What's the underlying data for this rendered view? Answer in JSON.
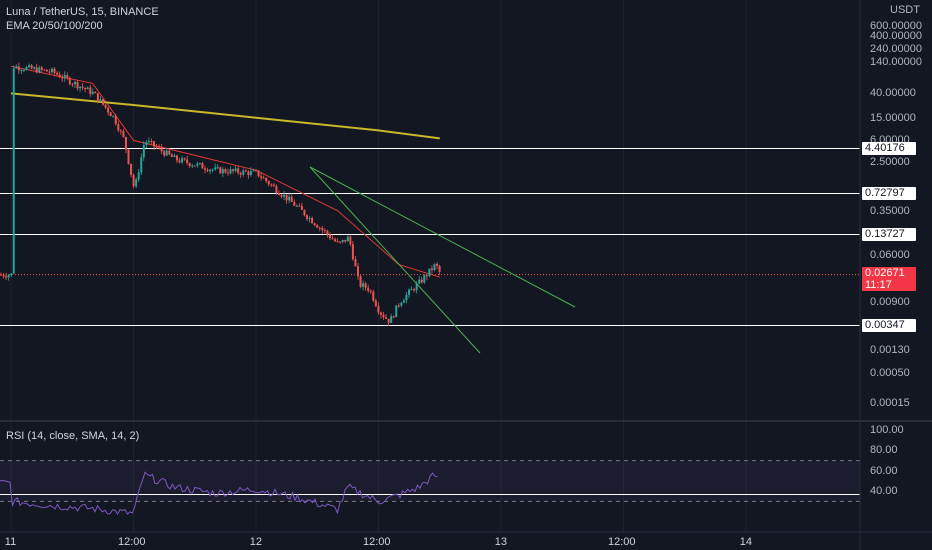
{
  "header": {
    "symbol_line": "Luna / TetherUS, 15, BINANCE",
    "indicator_line": "EMA 20/50/100/200",
    "currency": "USDT"
  },
  "price_axis": {
    "ticks": [
      "600.00000",
      "400.00000",
      "240.00000",
      "140.00000",
      "40.00000",
      "15.00000",
      "6.00000",
      "2.50000",
      "0.35000",
      "0.06000",
      "0.00900",
      "0.00130",
      "0.00050",
      "0.00015"
    ],
    "level_tags": [
      "4.40176",
      "0.72797",
      "0.13727",
      "0.00347"
    ],
    "current_price": "0.02671",
    "countdown": "11:17"
  },
  "rsi": {
    "legend": "RSI (14, close, SMA, 14, 2)",
    "ticks": [
      "100.00",
      "80.00",
      "60.00",
      "40.00"
    ]
  },
  "time_axis": {
    "ticks": [
      "11",
      "12:00",
      "12",
      "12:00",
      "13",
      "12:00",
      "14"
    ]
  },
  "colors": {
    "background": "#131722",
    "up": "#26a69a",
    "down": "#ef5350",
    "ema_red": "#e53935",
    "ema_yellow": "#c8b82a",
    "trendline": "#4caf50",
    "level_line": "#ffffff",
    "rsi_line": "#7e57c2",
    "price_tag": "#f23645"
  },
  "chart_data": [
    {
      "type": "candlestick",
      "title": "Luna / TetherUS, 15, BINANCE",
      "scale": "log",
      "ylabel": "USDT",
      "horizontal_levels": [
        4.40176,
        0.72797,
        0.13727,
        0.00347
      ],
      "current_price": 0.02671,
      "close_path": [
        [
          "11 00:00",
          120
        ],
        [
          "11 04:00",
          95
        ],
        [
          "11 08:00",
          40
        ],
        [
          "11 10:00",
          15
        ],
        [
          "11 11:00",
          6
        ],
        [
          "11 12:00",
          0.8
        ],
        [
          "11 13:00",
          6
        ],
        [
          "11 16:00",
          2.8
        ],
        [
          "11 20:00",
          1.8
        ],
        [
          "12 00:00",
          1.6
        ],
        [
          "12 04:00",
          0.4
        ],
        [
          "12 08:00",
          0.09
        ],
        [
          "12 09:00",
          0.12
        ],
        [
          "12 10:00",
          0.018
        ],
        [
          "12 11:00",
          0.015
        ],
        [
          "12 12:00",
          0.006
        ],
        [
          "12 13:00",
          0.004
        ],
        [
          "12 14:00",
          0.009
        ],
        [
          "12 16:00",
          0.02
        ],
        [
          "12 17:30",
          0.04
        ],
        [
          "12 18:00",
          0.02671
        ]
      ],
      "ema_series": [
        {
          "values": [
            [
              "11 00:00",
              120
            ],
            [
              "11 08:00",
              60
            ],
            [
              "11 12:00",
              6
            ],
            [
              "12 00:00",
              1.8
            ],
            [
              "12 08:00",
              0.35
            ],
            [
              "12 14:00",
              0.04
            ],
            [
              "12 18:00",
              0.024
            ]
          ]
        },
        {
          "values": [
            [
              "11 00:00",
              40
            ],
            [
              "11 12:00",
              25
            ],
            [
              "12 00:00",
              15
            ],
            [
              "12 12:00",
              9
            ],
            [
              "12 18:00",
              6.5
            ]
          ]
        }
      ]
    },
    {
      "type": "line",
      "title": "RSI (14, close, SMA, 14, 2)",
      "ylim": [
        0,
        100
      ],
      "bands": [
        70,
        30
      ],
      "x": [
        "11 00:00",
        "11 04:00",
        "11 08:00",
        "11 12:00",
        "11 13:00",
        "11 16:00",
        "11 20:00",
        "12 00:00",
        "12 04:00",
        "12 08:00",
        "12 09:00",
        "12 12:00",
        "12 14:00",
        "12 16:00",
        "12 17:30",
        "12 18:00"
      ],
      "values": [
        30,
        26,
        23,
        18,
        56,
        44,
        38,
        42,
        34,
        22,
        44,
        30,
        36,
        44,
        56,
        48
      ]
    }
  ]
}
